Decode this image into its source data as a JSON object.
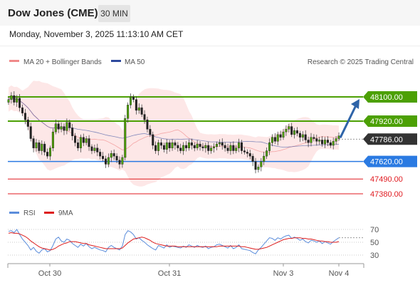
{
  "header": {
    "title": "Dow Jones (CME)",
    "timeframe": "30 MIN"
  },
  "datetime": "Monday, November 3, 2025 11:13:10 AM CET",
  "legend": {
    "ma_bollinger": "MA 20 + Bollinger Bands",
    "ma50": "MA 50",
    "credit": "Research © 2025 Trading Central",
    "rsi": "RSI",
    "rsi_ma": "9MA"
  },
  "colors": {
    "resistance": "#4ca004",
    "current": "#333333",
    "support_main": "#2a7ae2",
    "support_minor": "#e0191f",
    "arrow": "#2e64a8",
    "bollinger_fill": "#fde3e3",
    "ma20": "#f08a8a",
    "ma50": "#2e4a9e",
    "rsi": "#5b8ddb",
    "rsi_ma": "#dd1b1b"
  },
  "price_levels": [
    {
      "label": "48100.00",
      "value": 48100,
      "kind": "resistance"
    },
    {
      "label": "47920.00",
      "value": 47920,
      "kind": "resistance"
    },
    {
      "label": "47786.00",
      "value": 47786,
      "kind": "current"
    },
    {
      "label": "47620.00",
      "value": 47620,
      "kind": "support_main"
    },
    {
      "label": "47490.00",
      "value": 47490,
      "kind": "support_minor"
    },
    {
      "label": "47380.00",
      "value": 47380,
      "kind": "support_minor"
    }
  ],
  "chart_data": [
    {
      "type": "candlestick",
      "xlabels": [
        "Oct 30",
        "Oct 31",
        "Nov 3",
        "Nov 4"
      ],
      "current_price": 47786,
      "forecast_target": 48100,
      "close": [
        48080,
        48110,
        48060,
        48090,
        48020,
        47980,
        47930,
        47880,
        47790,
        47720,
        47760,
        47700,
        47750,
        47690,
        47660,
        47720,
        47840,
        47900,
        47860,
        47880,
        47850,
        47910,
        47870,
        47810,
        47760,
        47720,
        47800,
        47760,
        47790,
        47730,
        47700,
        47720,
        47690,
        47660,
        47640,
        47600,
        47650,
        47680,
        47660,
        47630,
        47600,
        47650,
        47940,
        48040,
        48100,
        48080,
        48000,
        48020,
        47970,
        47930,
        47860,
        47820,
        47740,
        47700,
        47760,
        47740,
        47710,
        47760,
        47720,
        47760,
        47740,
        47720,
        47700,
        47740,
        47720,
        47760,
        47740,
        47720,
        47750,
        47730,
        47720,
        47740,
        47700,
        47720,
        47730,
        47750,
        47760,
        47740,
        47720,
        47700,
        47740,
        47700,
        47720,
        47760,
        47700,
        47690,
        47680,
        47660,
        47620,
        47560,
        47580,
        47620,
        47660,
        47700,
        47760,
        47800,
        47770,
        47820,
        47800,
        47840,
        47860,
        47880,
        47820,
        47850,
        47830,
        47800,
        47820,
        47780,
        47760,
        47800,
        47790,
        47770,
        47780,
        47750,
        47780,
        47760,
        47740,
        47770,
        47790,
        47810
      ]
    },
    {
      "type": "line",
      "title": "RSI",
      "yticks": [
        70,
        50,
        30
      ],
      "series": [
        {
          "name": "RSI",
          "values": [
            67,
            68,
            65,
            70,
            62,
            55,
            50,
            45,
            38,
            42,
            36,
            33,
            38,
            40,
            35,
            37,
            45,
            55,
            58,
            52,
            50,
            55,
            53,
            48,
            45,
            42,
            47,
            44,
            48,
            43,
            40,
            42,
            40,
            38,
            37,
            35,
            42,
            45,
            42,
            40,
            38,
            44,
            62,
            68,
            66,
            62,
            55,
            57,
            53,
            50,
            46,
            43,
            40,
            38,
            45,
            43,
            41,
            46,
            42,
            44,
            43,
            42,
            41,
            44,
            42,
            46,
            44,
            42,
            45,
            43,
            42,
            44,
            40,
            42,
            43,
            46,
            47,
            45,
            43,
            41,
            45,
            40,
            42,
            46,
            40,
            39,
            38,
            37,
            34,
            32,
            38,
            42,
            47,
            52,
            57,
            56,
            53,
            57,
            55,
            58,
            60,
            61,
            56,
            58,
            56,
            53,
            55,
            51,
            49,
            53,
            52,
            50,
            52,
            48,
            51,
            49,
            47,
            51,
            54,
            57
          ]
        },
        {
          "name": "9MA",
          "values": [
            64,
            65,
            64,
            64,
            63,
            61,
            59,
            56,
            52,
            49,
            46,
            43,
            41,
            40,
            39,
            38,
            39,
            41,
            44,
            46,
            48,
            49,
            51,
            51,
            51,
            50,
            49,
            48,
            48,
            46,
            45,
            44,
            43,
            42,
            41,
            40,
            40,
            40,
            40,
            40,
            40,
            41,
            45,
            49,
            52,
            55,
            56,
            57,
            58,
            57,
            55,
            53,
            50,
            48,
            47,
            46,
            45,
            44,
            44,
            44,
            44,
            43,
            43,
            43,
            43,
            43,
            43,
            43,
            43,
            43,
            43,
            43,
            43,
            43,
            43,
            43,
            44,
            44,
            44,
            44,
            44,
            44,
            44,
            44,
            43,
            43,
            42,
            41,
            40,
            39,
            39,
            40,
            41,
            42,
            44,
            46,
            48,
            50,
            52,
            54,
            55,
            56,
            56,
            57,
            57,
            57,
            56,
            56,
            55,
            55,
            54,
            53,
            52,
            52,
            51,
            51,
            50,
            50,
            50,
            51
          ]
        }
      ]
    }
  ]
}
